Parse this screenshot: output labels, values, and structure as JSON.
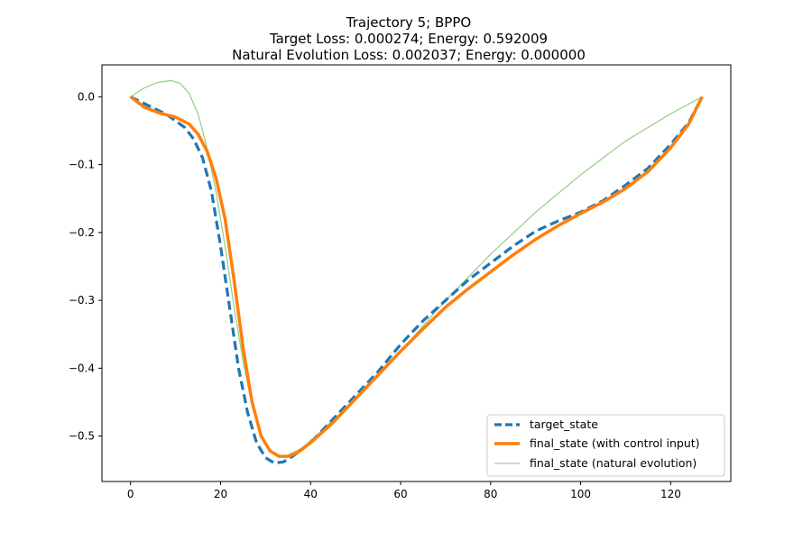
{
  "chart_data": {
    "type": "line",
    "title_lines": [
      "Trajectory 5; BPPO",
      "Target Loss: 0.000274; Energy: 0.592009",
      "Natural Evolution Loss: 0.002037; Energy: 0.000000"
    ],
    "xlabel": "",
    "ylabel": "",
    "xlim": [
      -6.35,
      133.35
    ],
    "ylim": [
      -0.567,
      0.047
    ],
    "x_ticks": [
      0,
      20,
      40,
      60,
      80,
      100,
      120
    ],
    "y_ticks": [
      0.0,
      -0.1,
      -0.2,
      -0.3,
      -0.4,
      -0.5
    ],
    "y_tick_labels": [
      "0.0",
      "−0.1",
      "−0.2",
      "−0.3",
      "−0.4",
      "−0.5"
    ],
    "grid": false,
    "legend_position": "lower-right",
    "series": [
      {
        "name": "target_state",
        "color": "#1f77b4",
        "style": "dashed",
        "points": [
          [
            0,
            0
          ],
          [
            4,
            -0.013
          ],
          [
            8,
            -0.026
          ],
          [
            12,
            -0.045
          ],
          [
            14,
            -0.062
          ],
          [
            16,
            -0.09
          ],
          [
            18,
            -0.14
          ],
          [
            20,
            -0.22
          ],
          [
            22,
            -0.31
          ],
          [
            24,
            -0.4
          ],
          [
            26,
            -0.465
          ],
          [
            28,
            -0.51
          ],
          [
            30,
            -0.532
          ],
          [
            32,
            -0.54
          ],
          [
            34,
            -0.538
          ],
          [
            36,
            -0.53
          ],
          [
            40,
            -0.51
          ],
          [
            45,
            -0.475
          ],
          [
            50,
            -0.44
          ],
          [
            55,
            -0.405
          ],
          [
            60,
            -0.365
          ],
          [
            65,
            -0.33
          ],
          [
            70,
            -0.3
          ],
          [
            75,
            -0.27
          ],
          [
            80,
            -0.245
          ],
          [
            85,
            -0.22
          ],
          [
            90,
            -0.198
          ],
          [
            95,
            -0.183
          ],
          [
            100,
            -0.17
          ],
          [
            105,
            -0.153
          ],
          [
            110,
            -0.13
          ],
          [
            115,
            -0.105
          ],
          [
            120,
            -0.07
          ],
          [
            124,
            -0.038
          ],
          [
            127,
            0
          ]
        ]
      },
      {
        "name": "final_state (with control input)",
        "color": "#ff7f0e",
        "style": "solid",
        "points": [
          [
            0,
            0
          ],
          [
            3,
            -0.015
          ],
          [
            6,
            -0.023
          ],
          [
            10,
            -0.03
          ],
          [
            13,
            -0.04
          ],
          [
            15,
            -0.055
          ],
          [
            17,
            -0.08
          ],
          [
            19,
            -0.12
          ],
          [
            21,
            -0.18
          ],
          [
            23,
            -0.27
          ],
          [
            25,
            -0.37
          ],
          [
            27,
            -0.45
          ],
          [
            29,
            -0.5
          ],
          [
            31,
            -0.522
          ],
          [
            33,
            -0.53
          ],
          [
            35,
            -0.53
          ],
          [
            37,
            -0.525
          ],
          [
            40,
            -0.51
          ],
          [
            45,
            -0.48
          ],
          [
            50,
            -0.445
          ],
          [
            55,
            -0.41
          ],
          [
            60,
            -0.375
          ],
          [
            65,
            -0.342
          ],
          [
            70,
            -0.31
          ],
          [
            75,
            -0.283
          ],
          [
            80,
            -0.258
          ],
          [
            85,
            -0.233
          ],
          [
            90,
            -0.21
          ],
          [
            95,
            -0.19
          ],
          [
            100,
            -0.172
          ],
          [
            105,
            -0.155
          ],
          [
            110,
            -0.135
          ],
          [
            115,
            -0.11
          ],
          [
            120,
            -0.075
          ],
          [
            124,
            -0.04
          ],
          [
            127,
            0
          ]
        ]
      },
      {
        "name": "final_state (natural evolution)",
        "color": "#98d28a",
        "style": "solid-thin",
        "points": [
          [
            0,
            0
          ],
          [
            3,
            0.013
          ],
          [
            6,
            0.021
          ],
          [
            9,
            0.024
          ],
          [
            11,
            0.02
          ],
          [
            13,
            0.005
          ],
          [
            15,
            -0.025
          ],
          [
            17,
            -0.075
          ],
          [
            19,
            -0.14
          ],
          [
            21,
            -0.22
          ],
          [
            23,
            -0.31
          ],
          [
            25,
            -0.39
          ],
          [
            27,
            -0.455
          ],
          [
            29,
            -0.5
          ],
          [
            31,
            -0.522
          ],
          [
            33,
            -0.53
          ],
          [
            35,
            -0.528
          ],
          [
            38,
            -0.518
          ],
          [
            42,
            -0.495
          ],
          [
            50,
            -0.445
          ],
          [
            60,
            -0.375
          ],
          [
            70,
            -0.3
          ],
          [
            80,
            -0.232
          ],
          [
            90,
            -0.17
          ],
          [
            100,
            -0.115
          ],
          [
            110,
            -0.065
          ],
          [
            120,
            -0.025
          ],
          [
            127,
            0
          ]
        ]
      }
    ]
  }
}
